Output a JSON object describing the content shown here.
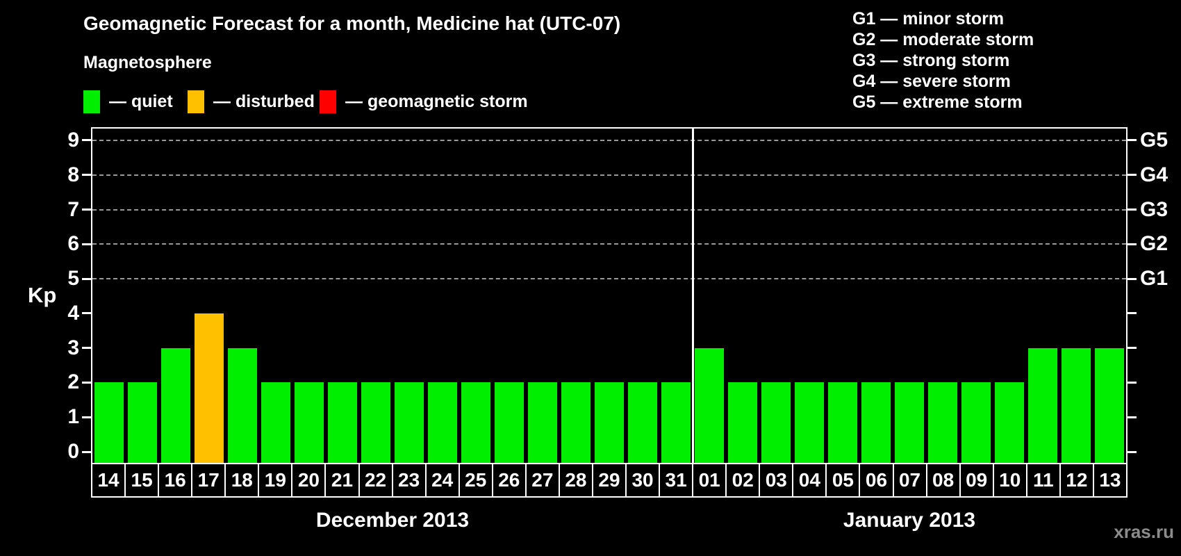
{
  "title": "Geomagnetic Forecast for a month, Medicine hat (UTC-07)",
  "legend": {
    "heading": "Magnetosphere",
    "items": [
      {
        "state": "quiet",
        "label": "— quiet",
        "color": "#00ee00"
      },
      {
        "state": "disturbed",
        "label": "— disturbed",
        "color": "#ffc000"
      },
      {
        "state": "storm",
        "label": "— geomagnetic storm",
        "color": "#ff0000"
      }
    ]
  },
  "g_scale_legend": {
    "items": [
      "G1 — minor storm",
      "G2 — moderate storm",
      "G3 — strong storm",
      "G4 — severe storm",
      "G5 — extreme storm"
    ]
  },
  "watermark": "xras.ru",
  "chart_data": {
    "type": "bar",
    "title": "Geomagnetic Forecast for a month, Medicine hat (UTC-07)",
    "ylabel": "Kp",
    "ylim": [
      0,
      9
    ],
    "yticks": [
      0,
      1,
      2,
      3,
      4,
      5,
      6,
      7,
      8,
      9
    ],
    "gridlines": [
      5,
      6,
      7,
      8,
      9
    ],
    "grid_style": "dashed",
    "grid_color": "#999999",
    "legend_position": "top",
    "right_axis": [
      {
        "value": 5,
        "label": "G1"
      },
      {
        "value": 6,
        "label": "G2"
      },
      {
        "value": 7,
        "label": "G3"
      },
      {
        "value": 8,
        "label": "G4"
      },
      {
        "value": 9,
        "label": "G5"
      }
    ],
    "state_colors": {
      "quiet": "#00ee00",
      "disturbed": "#ffc000",
      "storm": "#ff0000"
    },
    "months": [
      {
        "label": "December 2013",
        "days": [
          "14",
          "15",
          "16",
          "17",
          "18",
          "19",
          "20",
          "21",
          "22",
          "23",
          "24",
          "25",
          "26",
          "27",
          "28",
          "29",
          "30",
          "31"
        ],
        "values": [
          2,
          2,
          3,
          4,
          3,
          2,
          2,
          2,
          2,
          2,
          2,
          2,
          2,
          2,
          2,
          2,
          2,
          2
        ],
        "states": [
          "quiet",
          "quiet",
          "quiet",
          "disturbed",
          "quiet",
          "quiet",
          "quiet",
          "quiet",
          "quiet",
          "quiet",
          "quiet",
          "quiet",
          "quiet",
          "quiet",
          "quiet",
          "quiet",
          "quiet",
          "quiet"
        ]
      },
      {
        "label": "January 2013",
        "days": [
          "01",
          "02",
          "03",
          "04",
          "05",
          "06",
          "07",
          "08",
          "09",
          "10",
          "11",
          "12",
          "13"
        ],
        "values": [
          3,
          2,
          2,
          2,
          2,
          2,
          2,
          2,
          2,
          2,
          3,
          3,
          3
        ],
        "states": [
          "quiet",
          "quiet",
          "quiet",
          "quiet",
          "quiet",
          "quiet",
          "quiet",
          "quiet",
          "quiet",
          "quiet",
          "quiet",
          "quiet",
          "quiet"
        ]
      }
    ]
  }
}
